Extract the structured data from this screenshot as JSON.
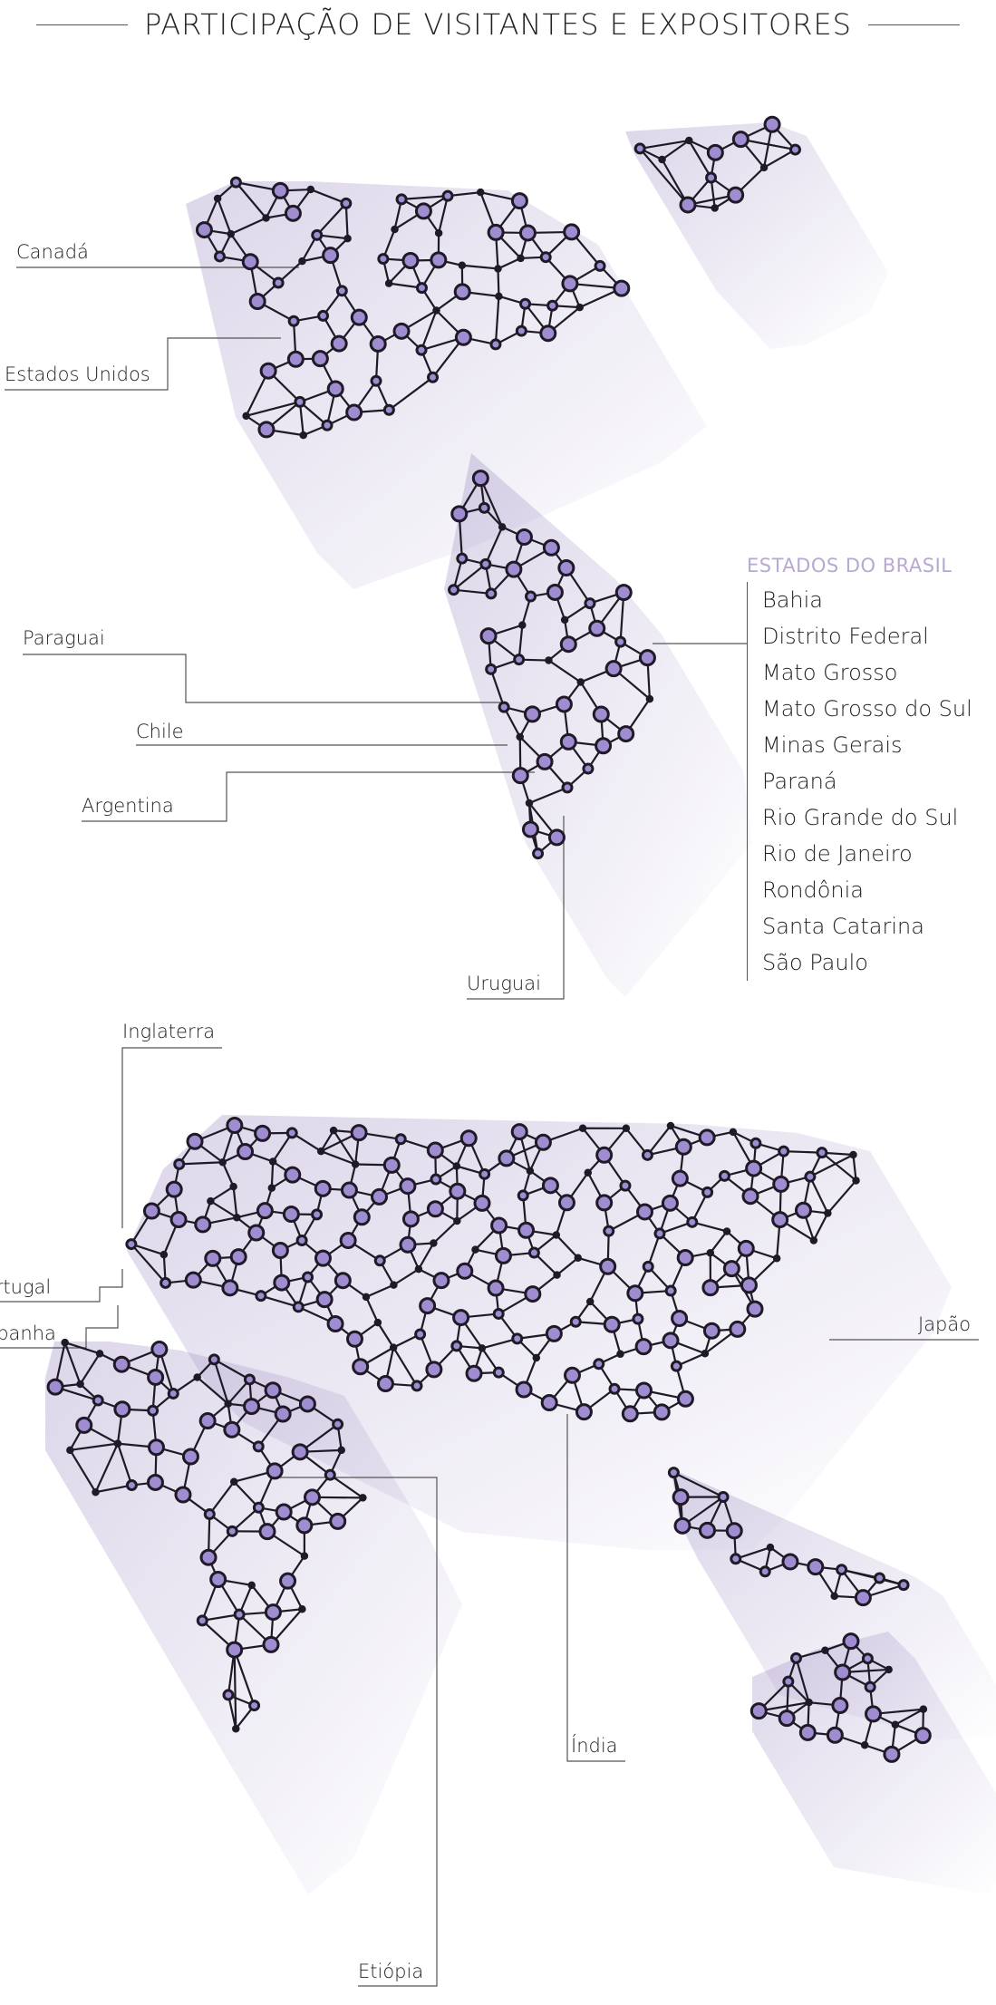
{
  "title": "PARTICIPAÇÃO DE VISITANTES E EXPOSITORES",
  "colors": {
    "node_fill": "#a08cd0",
    "node_stroke": "#1e1a26",
    "shadow": "#8c78b8",
    "line": "#555555",
    "states_title": "#b7a9d1"
  },
  "americas_labels": {
    "canada": "Canadá",
    "usa": "Estados Unidos",
    "paraguay": "Paraguai",
    "chile": "Chile",
    "argentina": "Argentina",
    "uruguay": "Uruguai"
  },
  "brazil_states": {
    "title": "ESTADOS DO BRASIL",
    "items": [
      "Bahia",
      "Distrito Federal",
      "Mato Grosso",
      "Mato Grosso do Sul",
      "Minas Gerais",
      "Paraná",
      "Rio Grande do Sul",
      "Rio de Janeiro",
      "Rondônia",
      "Santa Catarina",
      "São Paulo"
    ]
  },
  "world_labels": {
    "england": "Inglaterra",
    "portugal": "Portugal",
    "spain": "Espanha",
    "japan": "Japão",
    "india": "Índia",
    "ethiopia": "Etiópia"
  }
}
